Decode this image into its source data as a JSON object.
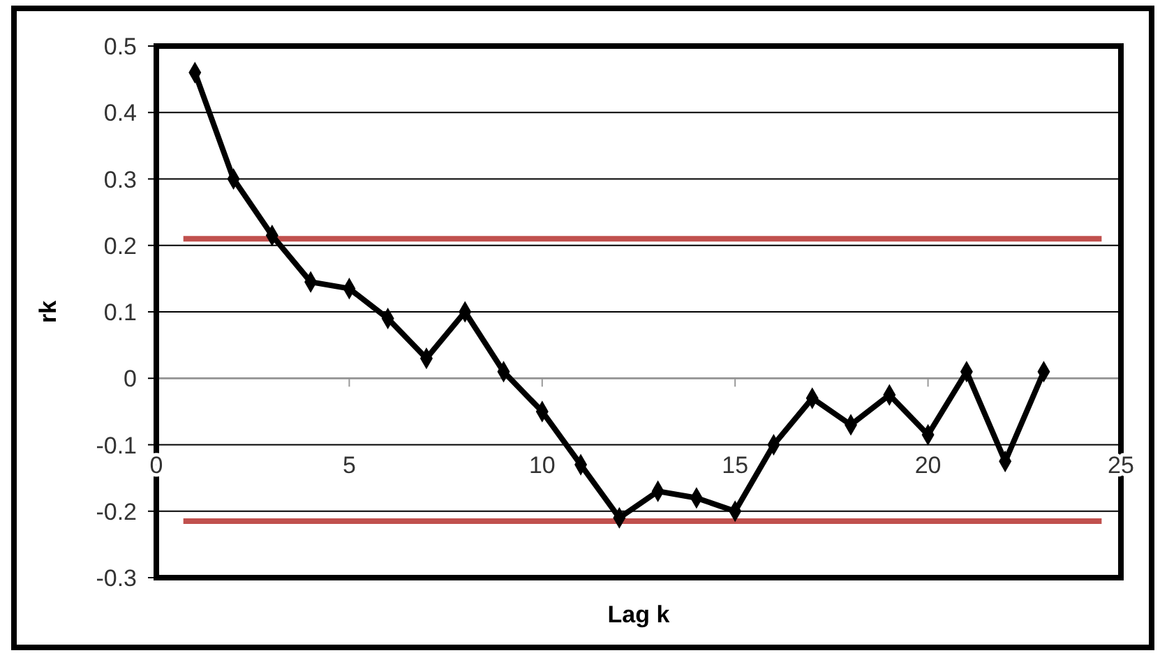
{
  "chart_data": {
    "type": "line",
    "xlabel": "Lag k",
    "ylabel": "rk",
    "x": [
      1,
      2,
      3,
      4,
      5,
      6,
      7,
      8,
      9,
      10,
      11,
      12,
      13,
      14,
      15,
      16,
      17,
      18,
      19,
      20,
      21,
      22,
      23
    ],
    "series": [
      {
        "color": "#000000",
        "values": [
          0.46,
          0.3,
          0.215,
          0.145,
          0.135,
          0.09,
          0.03,
          0.1,
          0.01,
          -0.05,
          -0.13,
          -0.21,
          -0.17,
          -0.18,
          -0.2,
          -0.1,
          -0.03,
          -0.07,
          -0.025,
          -0.085,
          0.01,
          -0.125,
          0.01
        ]
      }
    ],
    "xlim": [
      0,
      25
    ],
    "xticks": [
      0,
      5,
      10,
      15,
      20,
      25
    ],
    "ylim": [
      -0.3,
      0.5
    ],
    "yticks": [
      -0.3,
      -0.2,
      -0.1,
      0,
      0.1,
      0.2,
      0.3,
      0.4,
      0.5
    ],
    "ref_lines": [
      {
        "axis": "y",
        "value": 0.21,
        "color": "#c0504d"
      },
      {
        "axis": "y",
        "value": -0.215,
        "color": "#c0504d"
      }
    ],
    "grid": "y",
    "marker": "diamond",
    "line_style": "solid"
  }
}
